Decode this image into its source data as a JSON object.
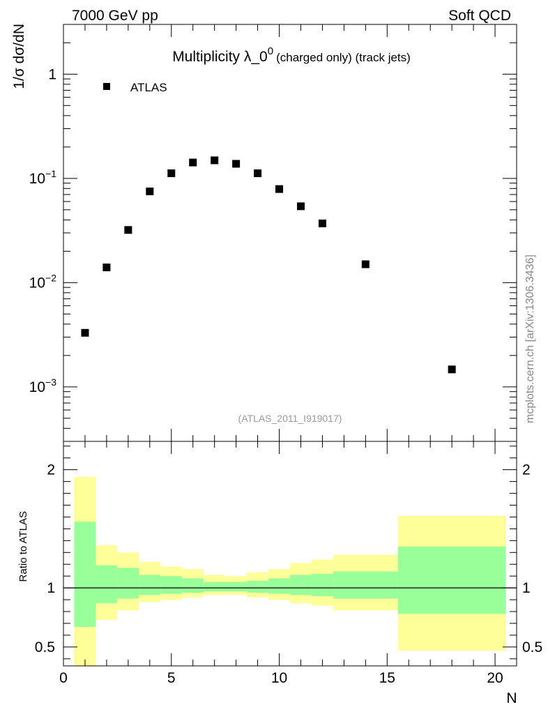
{
  "header": {
    "left": "7000 GeV pp",
    "right": "Soft QCD"
  },
  "side_label": "mcplots.cern.ch [arXiv:1306.3436]",
  "analysis_id": "(ATLAS_2011_I919017)",
  "colors": {
    "marker": "#000000",
    "band_outer": "#ffff99",
    "band_inner": "#99ff99",
    "ref_line": "#000000",
    "analysis_id": "#999999",
    "side_label": "#888888"
  },
  "chart_data": [
    {
      "type": "scatter",
      "title_main": "Multiplicity λ_0",
      "title_sup": "0",
      "title_tail": "(charged only) (track jets)",
      "ylabel": "1/σ dσ/dN",
      "yscale": "log",
      "ylim": [
        0.0003,
        3
      ],
      "xlim": [
        0,
        21
      ],
      "yticks": [
        {
          "value": 1,
          "base": "1",
          "exp": ""
        },
        {
          "value": 0.1,
          "base": "10",
          "exp": "−1"
        },
        {
          "value": 0.01,
          "base": "10",
          "exp": "−2"
        },
        {
          "value": 0.001,
          "base": "10",
          "exp": "−3"
        }
      ],
      "legend_position": "top-left",
      "series": [
        {
          "name": "ATLAS",
          "x": [
            1,
            2,
            3,
            4,
            5,
            6,
            7,
            8,
            9,
            10,
            11,
            12,
            14,
            18
          ],
          "y": [
            0.0033,
            0.014,
            0.032,
            0.075,
            0.112,
            0.142,
            0.149,
            0.138,
            0.112,
            0.079,
            0.054,
            0.037,
            0.015,
            0.00147
          ]
        }
      ]
    },
    {
      "type": "area",
      "ylabel": "Ratio to ATLAS",
      "xlabel": "N",
      "ylim": [
        0.34,
        2.24
      ],
      "xlim": [
        0,
        21
      ],
      "xticks": [
        0,
        5,
        10,
        15,
        20
      ],
      "yticks": [
        "0.5",
        "1",
        "2"
      ],
      "reference_value": 1,
      "bins": [
        {
          "lo": 0.5,
          "hi": 1.5,
          "outer": [
            0.34,
            1.94
          ],
          "inner": [
            0.67,
            1.56
          ]
        },
        {
          "lo": 1.5,
          "hi": 2.5,
          "outer": [
            0.73,
            1.36
          ],
          "inner": [
            0.87,
            1.19
          ]
        },
        {
          "lo": 2.5,
          "hi": 3.5,
          "outer": [
            0.81,
            1.3
          ],
          "inner": [
            0.91,
            1.17
          ]
        },
        {
          "lo": 3.5,
          "hi": 4.5,
          "outer": [
            0.88,
            1.22
          ],
          "inner": [
            0.94,
            1.11
          ]
        },
        {
          "lo": 4.5,
          "hi": 5.5,
          "outer": [
            0.9,
            1.18
          ],
          "inner": [
            0.95,
            1.1
          ]
        },
        {
          "lo": 5.5,
          "hi": 6.5,
          "outer": [
            0.92,
            1.16
          ],
          "inner": [
            0.96,
            1.08
          ]
        },
        {
          "lo": 6.5,
          "hi": 7.5,
          "outer": [
            0.94,
            1.11
          ],
          "inner": [
            0.97,
            1.05
          ]
        },
        {
          "lo": 7.5,
          "hi": 8.5,
          "outer": [
            0.94,
            1.1
          ],
          "inner": [
            0.97,
            1.05
          ]
        },
        {
          "lo": 8.5,
          "hi": 9.5,
          "outer": [
            0.92,
            1.13
          ],
          "inner": [
            0.96,
            1.06
          ]
        },
        {
          "lo": 9.5,
          "hi": 10.5,
          "outer": [
            0.9,
            1.16
          ],
          "inner": [
            0.95,
            1.08
          ]
        },
        {
          "lo": 10.5,
          "hi": 11.5,
          "outer": [
            0.87,
            1.21
          ],
          "inner": [
            0.94,
            1.11
          ]
        },
        {
          "lo": 11.5,
          "hi": 12.5,
          "outer": [
            0.85,
            1.24
          ],
          "inner": [
            0.93,
            1.12
          ]
        },
        {
          "lo": 12.5,
          "hi": 15.5,
          "outer": [
            0.81,
            1.28
          ],
          "inner": [
            0.91,
            1.14
          ]
        },
        {
          "lo": 15.5,
          "hi": 20.5,
          "outer": [
            0.47,
            1.61
          ],
          "inner": [
            0.78,
            1.35
          ]
        }
      ]
    }
  ]
}
